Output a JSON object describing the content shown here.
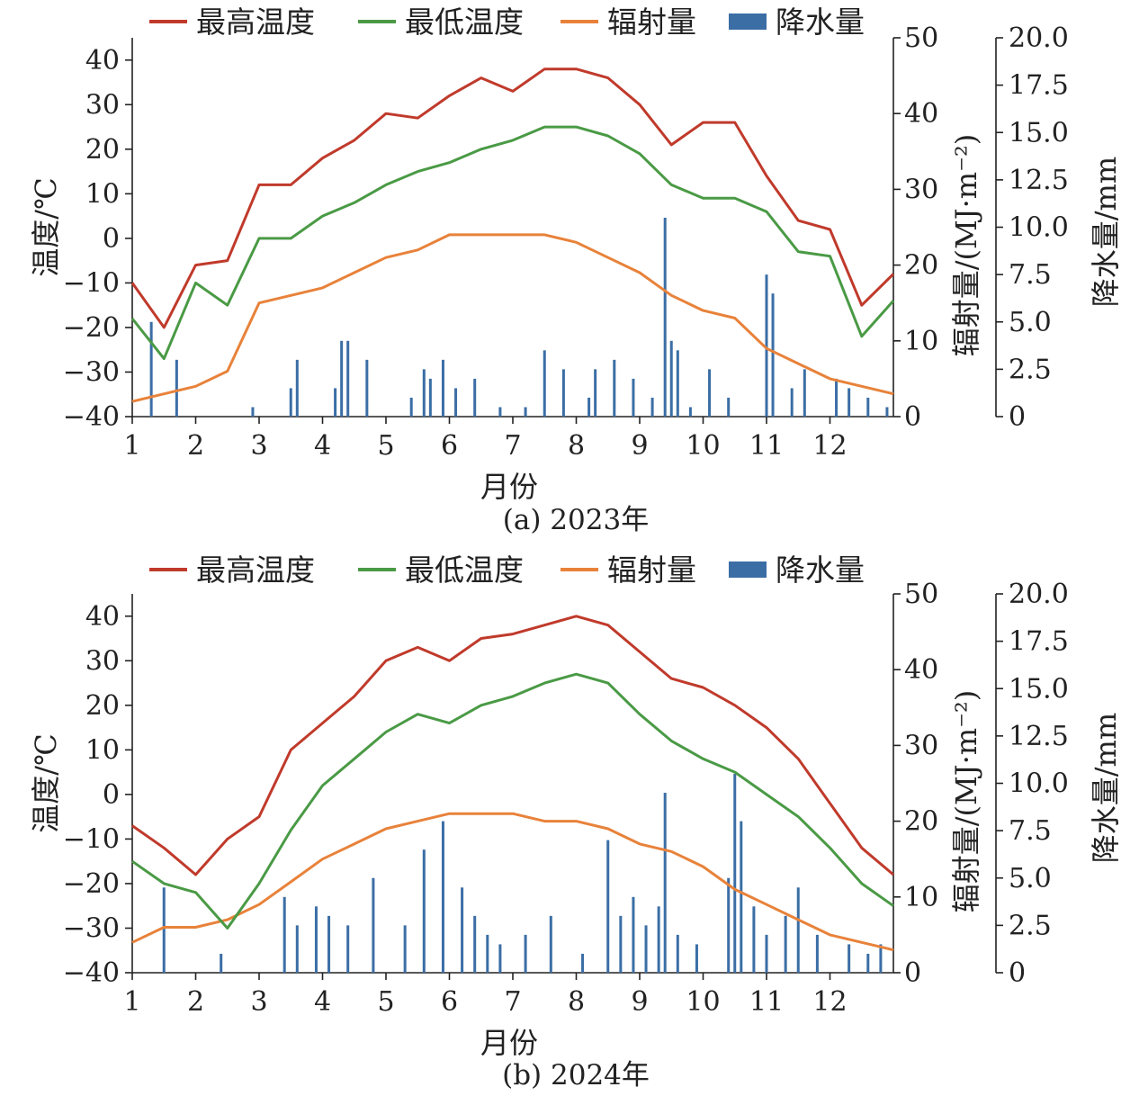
{
  "legend": {
    "tmax": "最高温度",
    "tmin": "最低温度",
    "rad": "辐射量",
    "precip": "降水量"
  },
  "axes": {
    "xlabel": "月份",
    "y_left_label": "温度/℃",
    "y_right1_label": "辐射量/(MJ·m⁻²)",
    "y_right2_label": "降水量/mm",
    "x_ticks": [
      "1",
      "2",
      "3",
      "4",
      "5",
      "6",
      "7",
      "8",
      "9",
      "10",
      "11",
      "12"
    ],
    "y_left_ticks": [
      "40",
      "30",
      "20",
      "10",
      "0",
      "−10",
      "−20",
      "−30",
      "−40"
    ],
    "y_right1_ticks": [
      "50",
      "40",
      "30",
      "20",
      "10",
      "0"
    ],
    "y_right2_ticks": [
      "20.0",
      "17.5",
      "15.0",
      "12.5",
      "10.0",
      "7.5",
      "5.0",
      "2.5",
      "0"
    ]
  },
  "colors": {
    "tmax": "#c03a2b",
    "tmin": "#4a9a45",
    "rad": "#e8823a",
    "precip": "#3b6ea5"
  },
  "chart_data": [
    {
      "type": "line",
      "caption": "(a) 2023年",
      "xlabel": "月份",
      "ylabel": "温度/℃",
      "y2label": "辐射量/(MJ·m⁻²)",
      "y3label": "降水量/mm",
      "xlim": [
        1,
        13
      ],
      "ylim": [
        -40,
        45
      ],
      "y2lim": [
        0,
        50
      ],
      "y3lim": [
        0,
        20
      ],
      "x": [
        1.0,
        1.5,
        2.0,
        2.5,
        3.0,
        3.5,
        4.0,
        4.5,
        5.0,
        5.5,
        6.0,
        6.5,
        7.0,
        7.5,
        8.0,
        8.5,
        9.0,
        9.5,
        10.0,
        10.5,
        11.0,
        11.5,
        12.0,
        12.5,
        13.0
      ],
      "series": [
        {
          "name": "最高温度",
          "axis": "temperature",
          "values": [
            -10,
            -20,
            -6,
            -5,
            12,
            12,
            18,
            22,
            28,
            27,
            32,
            36,
            33,
            38,
            38,
            36,
            30,
            21,
            26,
            26,
            14,
            4,
            2,
            -15,
            -8
          ]
        },
        {
          "name": "最低温度",
          "axis": "temperature",
          "values": [
            -18,
            -27,
            -10,
            -15,
            0,
            0,
            5,
            8,
            12,
            15,
            17,
            20,
            22,
            25,
            25,
            23,
            19,
            12,
            9,
            9,
            6,
            -3,
            -4,
            -22,
            -14
          ]
        },
        {
          "name": "辐射量",
          "axis": "radiation",
          "values": [
            2,
            3,
            4,
            6,
            15,
            16,
            17,
            19,
            21,
            22,
            24,
            24,
            24,
            24,
            23,
            21,
            19,
            16,
            14,
            13,
            9,
            7,
            5,
            4,
            3
          ]
        },
        {
          "name": "降水量",
          "axis": "precipitation",
          "type": "bar",
          "x": [
            1.3,
            1.7,
            2.9,
            3.5,
            3.6,
            4.2,
            4.3,
            4.4,
            4.7,
            5.4,
            5.6,
            5.7,
            5.9,
            6.1,
            6.4,
            6.8,
            7.2,
            7.5,
            7.8,
            8.2,
            8.3,
            8.6,
            8.9,
            9.2,
            9.4,
            9.5,
            9.6,
            9.8,
            10.1,
            10.4,
            11.0,
            11.1,
            11.4,
            11.6,
            12.1,
            12.3,
            12.6,
            12.9
          ],
          "values": [
            5.0,
            3.0,
            0.5,
            1.5,
            3.0,
            1.5,
            4.0,
            4.0,
            3.0,
            1.0,
            2.5,
            2.0,
            3.0,
            1.5,
            2.0,
            0.5,
            0.5,
            3.5,
            2.5,
            1.0,
            2.5,
            3.0,
            2.0,
            1.0,
            10.5,
            4.0,
            3.5,
            0.5,
            2.5,
            1.0,
            7.5,
            6.5,
            1.5,
            2.5,
            2.0,
            1.5,
            1.0,
            0.5
          ]
        }
      ]
    },
    {
      "type": "line",
      "caption": "(b) 2024年",
      "xlabel": "月份",
      "ylabel": "温度/℃",
      "y2label": "辐射量/(MJ·m⁻²)",
      "y3label": "降水量/mm",
      "xlim": [
        1,
        13
      ],
      "ylim": [
        -40,
        45
      ],
      "y2lim": [
        0,
        50
      ],
      "y3lim": [
        0,
        20
      ],
      "x": [
        1.0,
        1.5,
        2.0,
        2.5,
        3.0,
        3.5,
        4.0,
        4.5,
        5.0,
        5.5,
        6.0,
        6.5,
        7.0,
        7.5,
        8.0,
        8.5,
        9.0,
        9.5,
        10.0,
        10.5,
        11.0,
        11.5,
        12.0,
        12.5,
        13.0
      ],
      "series": [
        {
          "name": "最高温度",
          "axis": "temperature",
          "values": [
            -7,
            -12,
            -18,
            -10,
            -5,
            10,
            16,
            22,
            30,
            33,
            30,
            35,
            36,
            38,
            40,
            38,
            32,
            26,
            24,
            20,
            15,
            8,
            -2,
            -12,
            -18
          ]
        },
        {
          "name": "最低温度",
          "axis": "temperature",
          "values": [
            -15,
            -20,
            -22,
            -30,
            -20,
            -8,
            2,
            8,
            14,
            18,
            16,
            20,
            22,
            25,
            27,
            25,
            18,
            12,
            8,
            5,
            0,
            -5,
            -12,
            -20,
            -25
          ]
        },
        {
          "name": "辐射量",
          "axis": "radiation",
          "values": [
            4,
            6,
            6,
            7,
            9,
            12,
            15,
            17,
            19,
            20,
            21,
            21,
            21,
            20,
            20,
            19,
            17,
            16,
            14,
            11,
            9,
            7,
            5,
            4,
            3
          ]
        },
        {
          "name": "降水量",
          "axis": "precipitation",
          "type": "bar",
          "x": [
            1.5,
            2.4,
            3.4,
            3.6,
            3.9,
            4.1,
            4.4,
            4.8,
            5.3,
            5.6,
            5.9,
            6.2,
            6.4,
            6.6,
            6.8,
            7.2,
            7.6,
            8.1,
            8.5,
            8.7,
            8.9,
            9.1,
            9.3,
            9.4,
            9.6,
            9.9,
            10.4,
            10.5,
            10.6,
            10.8,
            11.0,
            11.3,
            11.5,
            11.8,
            12.3,
            12.6,
            12.8
          ],
          "values": [
            4.5,
            1.0,
            4.0,
            2.5,
            3.5,
            3.0,
            2.5,
            5.0,
            2.5,
            6.5,
            8.0,
            4.5,
            3.0,
            2.0,
            1.5,
            2.0,
            3.0,
            1.0,
            7.0,
            3.0,
            4.0,
            2.5,
            3.5,
            9.5,
            2.0,
            1.5,
            5.0,
            10.5,
            8.0,
            3.5,
            2.0,
            3.0,
            4.5,
            2.0,
            1.5,
            1.0,
            1.5
          ]
        }
      ]
    }
  ]
}
